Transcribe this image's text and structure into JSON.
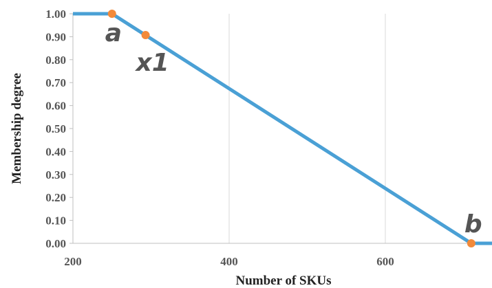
{
  "chart_data": {
    "type": "line",
    "xlabel": "Number of SKUs",
    "ylabel": "Membership degree",
    "xlim": [
      200,
      740
    ],
    "ylim": [
      0,
      1
    ],
    "x_ticks": [
      200,
      400,
      600
    ],
    "y_ticks": [
      "0.00",
      "0.10",
      "0.20",
      "0.30",
      "0.40",
      "0.50",
      "0.60",
      "0.70",
      "0.80",
      "0.90",
      "1.00"
    ],
    "grid": "vertical",
    "series": [
      {
        "color": "#4aa0d5",
        "x": [
          200,
          250,
          710,
          740
        ],
        "y": [
          1.0,
          1.0,
          0.0,
          0.0
        ]
      }
    ],
    "points": [
      {
        "label": "a",
        "x": 250,
        "y": 1.0,
        "color": "#f28a3a"
      },
      {
        "label": "x1",
        "x": 293,
        "y": 0.907,
        "color": "#f28a3a"
      },
      {
        "label": "b",
        "x": 710,
        "y": 0.0,
        "color": "#f28a3a"
      }
    ]
  }
}
